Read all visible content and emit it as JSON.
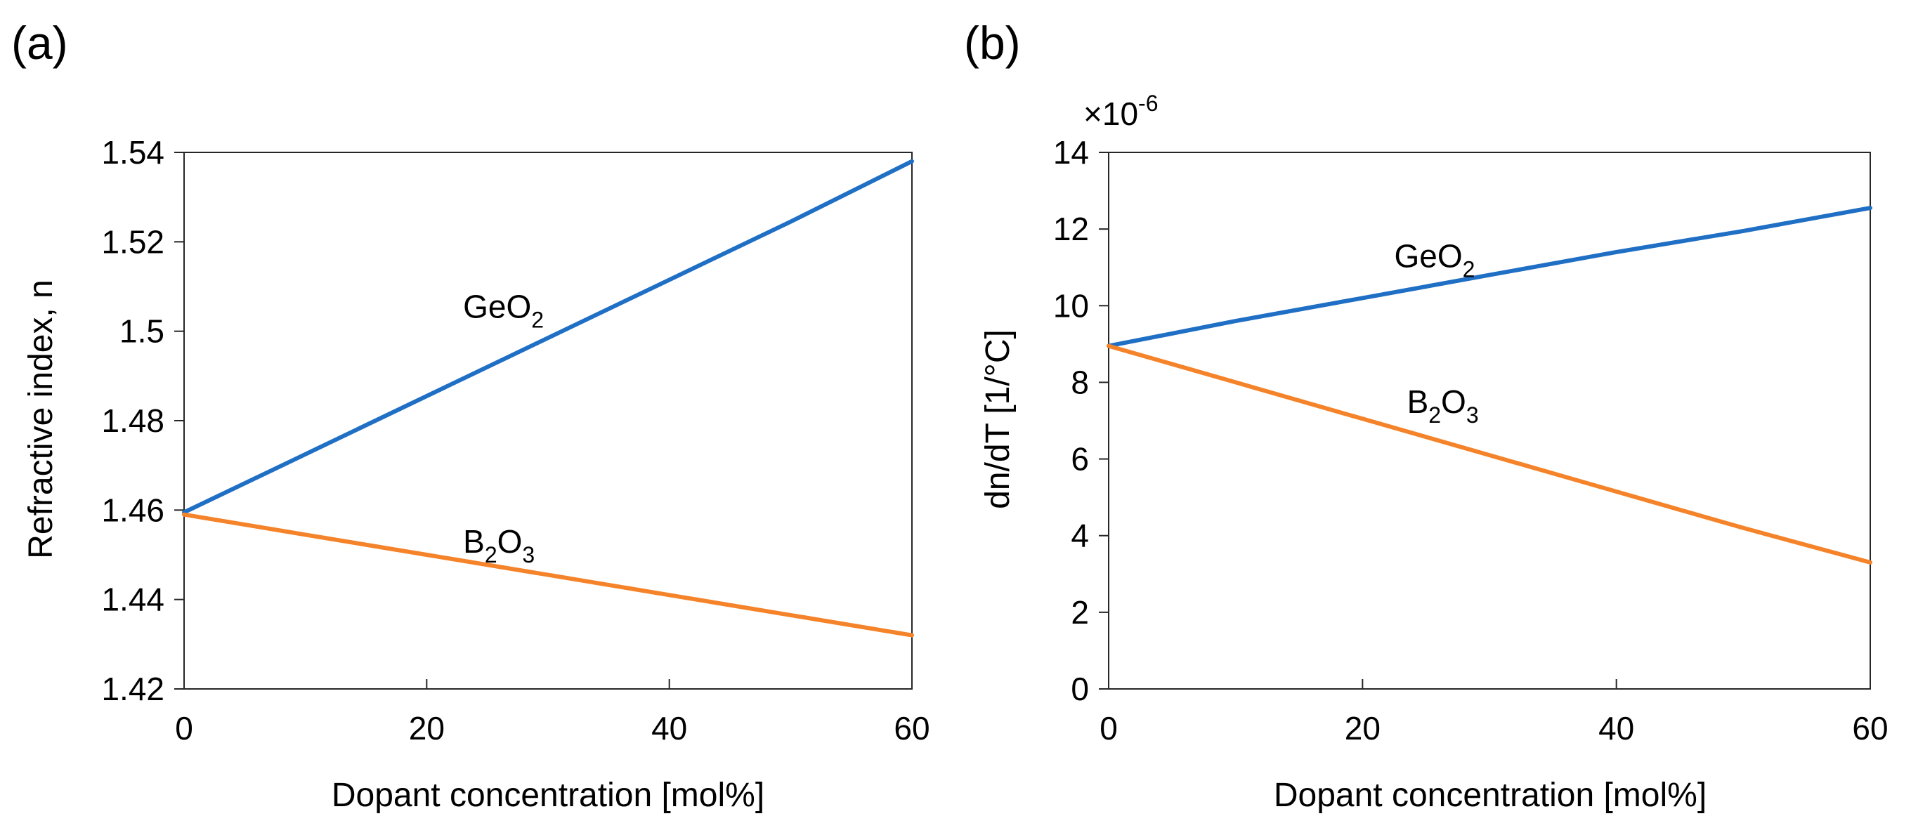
{
  "colors": {
    "geo2": "#1f6fc5",
    "b2o3": "#f5832a",
    "axis": "#262626"
  },
  "chart_data": [
    {
      "type": "line",
      "panel_label": "(a)",
      "xlabel": "Dopant concentration [mol%]",
      "ylabel": "Refractive index, n",
      "xlim": [
        0,
        60
      ],
      "ylim": [
        1.42,
        1.54
      ],
      "x_ticks": [
        0,
        20,
        40,
        60
      ],
      "x_tick_labels": [
        "0",
        "20",
        "40",
        "60"
      ],
      "y_ticks": [
        1.42,
        1.44,
        1.46,
        1.48,
        1.5,
        1.52,
        1.54
      ],
      "y_tick_labels": [
        "1.42",
        "1.44",
        "1.46",
        "1.48",
        "1.5",
        "1.52",
        "1.54"
      ],
      "grid": false,
      "series": [
        {
          "name": "GeO2",
          "label_main": "GeO",
          "label_sub": "2",
          "label_pos": [
            23,
            1.503
          ],
          "color_key": "geo2",
          "x": [
            0,
            10,
            20,
            30,
            40,
            50,
            60
          ],
          "values": [
            1.4595,
            1.4725,
            1.4855,
            1.4985,
            1.5115,
            1.5245,
            1.538
          ]
        },
        {
          "name": "B2O3",
          "label_parts": [
            "B",
            "2",
            "O",
            "3"
          ],
          "label_pos": [
            23,
            1.4505
          ],
          "color_key": "b2o3",
          "x": [
            0,
            10,
            20,
            30,
            40,
            50,
            60
          ],
          "values": [
            1.459,
            1.4545,
            1.45,
            1.4455,
            1.441,
            1.4365,
            1.432
          ]
        }
      ]
    },
    {
      "type": "line",
      "panel_label": "(b)",
      "multiplier_main": "×10",
      "multiplier_exp": "-6",
      "xlabel": "Dopant concentration [mol%]",
      "ylabel": "dn/dT [1/°C]",
      "xlim": [
        0,
        60
      ],
      "ylim": [
        0,
        14
      ],
      "x_ticks": [
        0,
        20,
        40,
        60
      ],
      "x_tick_labels": [
        "0",
        "20",
        "40",
        "60"
      ],
      "y_ticks": [
        0,
        2,
        4,
        6,
        8,
        10,
        12,
        14
      ],
      "y_tick_labels": [
        "0",
        "2",
        "4",
        "6",
        "8",
        "10",
        "12",
        "14"
      ],
      "grid": false,
      "series": [
        {
          "name": "GeO2",
          "label_main": "GeO",
          "label_sub": "2",
          "label_pos": [
            22.5,
            11.0
          ],
          "color_key": "geo2",
          "x": [
            0,
            10,
            20,
            30,
            40,
            50,
            60
          ],
          "values": [
            8.95,
            9.6,
            10.2,
            10.8,
            11.4,
            11.95,
            12.55
          ]
        },
        {
          "name": "B2O3",
          "label_parts": [
            "B",
            "2",
            "O",
            "3"
          ],
          "label_pos": [
            23.5,
            7.2
          ],
          "color_key": "b2o3",
          "x": [
            0,
            10,
            20,
            30,
            40,
            50,
            60
          ],
          "values": [
            8.95,
            8.0,
            7.05,
            6.1,
            5.15,
            4.2,
            3.3
          ]
        }
      ]
    }
  ]
}
